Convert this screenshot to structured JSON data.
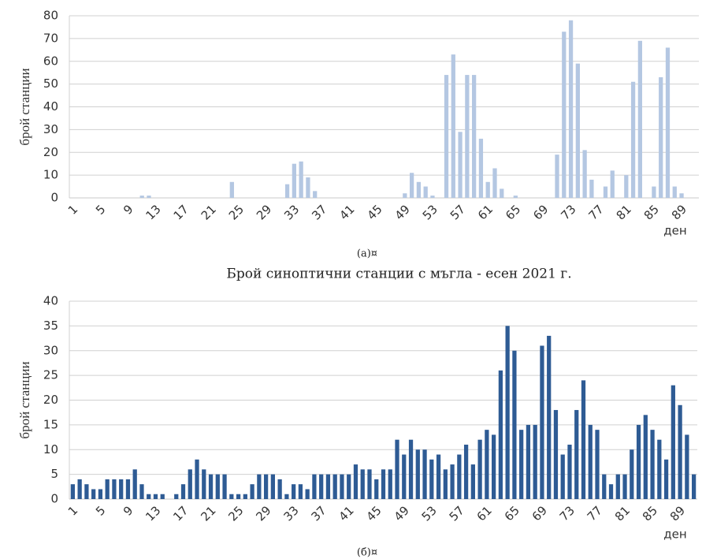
{
  "chart_data": [
    {
      "type": "bar",
      "y_label": "брой станции",
      "x_label": "ден",
      "caption": "(a)¤",
      "color": "#b4c7e2",
      "ylim": [
        0,
        80
      ],
      "yticks": [
        0,
        10,
        20,
        30,
        40,
        50,
        60,
        70,
        80
      ],
      "grid": true,
      "categories": [
        1,
        null,
        null,
        null,
        5,
        null,
        null,
        null,
        9,
        null,
        null,
        null,
        13,
        null,
        null,
        null,
        17,
        null,
        null,
        null,
        21,
        null,
        null,
        null,
        25,
        null,
        null,
        null,
        29,
        null,
        null,
        null,
        33,
        null,
        null,
        null,
        37,
        null,
        null,
        null,
        41,
        null,
        null,
        null,
        45,
        null,
        null,
        null,
        49,
        null,
        null,
        null,
        53,
        null,
        null,
        null,
        57,
        null,
        null,
        null,
        61,
        null,
        null,
        null,
        65,
        null,
        null,
        null,
        69,
        null,
        null,
        null,
        73,
        null,
        null,
        null,
        77,
        null,
        null,
        null,
        81,
        null,
        null,
        null,
        85,
        null,
        null,
        null,
        89,
        null,
        null
      ],
      "values": [
        0,
        0,
        0,
        0,
        0,
        0,
        0,
        0,
        0,
        0,
        1,
        1,
        0,
        0,
        0,
        0,
        0,
        0,
        0,
        0,
        0,
        0,
        0,
        7,
        0,
        0,
        0,
        0,
        0,
        0,
        0,
        6,
        15,
        16,
        9,
        3,
        0,
        0,
        0,
        0,
        0,
        0,
        0,
        0,
        0,
        0,
        0,
        0,
        2,
        11,
        7,
        5,
        1,
        0,
        54,
        63,
        29,
        54,
        54,
        26,
        7,
        13,
        4,
        0,
        1,
        0,
        0,
        0,
        0,
        0,
        19,
        73,
        78,
        59,
        21,
        8,
        0,
        5,
        12,
        0,
        10,
        51,
        69,
        0,
        5,
        53,
        66,
        5,
        2,
        0,
        0
      ]
    },
    {
      "type": "bar",
      "title": "Брой синоптични станции с мъгла - есен 2021 г.",
      "y_label": "брой станции",
      "x_label": "ден",
      "caption": "(б)¤",
      "color": "#2e5b94",
      "ylim": [
        0,
        40
      ],
      "yticks": [
        0,
        5,
        10,
        15,
        20,
        25,
        30,
        35,
        40
      ],
      "grid": true,
      "categories": [
        1,
        null,
        null,
        null,
        5,
        null,
        null,
        null,
        9,
        null,
        null,
        null,
        13,
        null,
        null,
        null,
        17,
        null,
        null,
        null,
        21,
        null,
        null,
        null,
        25,
        null,
        null,
        null,
        29,
        null,
        null,
        null,
        33,
        null,
        null,
        null,
        37,
        null,
        null,
        null,
        41,
        null,
        null,
        null,
        45,
        null,
        null,
        null,
        49,
        null,
        null,
        null,
        53,
        null,
        null,
        null,
        57,
        null,
        null,
        null,
        61,
        null,
        null,
        null,
        65,
        null,
        null,
        null,
        69,
        null,
        null,
        null,
        73,
        null,
        null,
        null,
        77,
        null,
        null,
        null,
        81,
        null,
        null,
        null,
        85,
        null,
        null,
        null,
        89,
        null,
        null
      ],
      "values": [
        3,
        4,
        3,
        2,
        2,
        4,
        4,
        4,
        4,
        6,
        3,
        1,
        1,
        1,
        0,
        1,
        3,
        6,
        8,
        6,
        5,
        5,
        5,
        1,
        1,
        1,
        3,
        5,
        5,
        5,
        4,
        1,
        3,
        3,
        2,
        5,
        5,
        5,
        5,
        5,
        5,
        7,
        6,
        6,
        4,
        6,
        6,
        12,
        9,
        12,
        10,
        10,
        8,
        9,
        6,
        7,
        9,
        11,
        7,
        12,
        14,
        13,
        26,
        35,
        30,
        14,
        15,
        15,
        31,
        33,
        18,
        9,
        11,
        18,
        24,
        15,
        14,
        5,
        3,
        5,
        5,
        10,
        15,
        17,
        14,
        12,
        8,
        23,
        19,
        13,
        5
      ]
    }
  ]
}
